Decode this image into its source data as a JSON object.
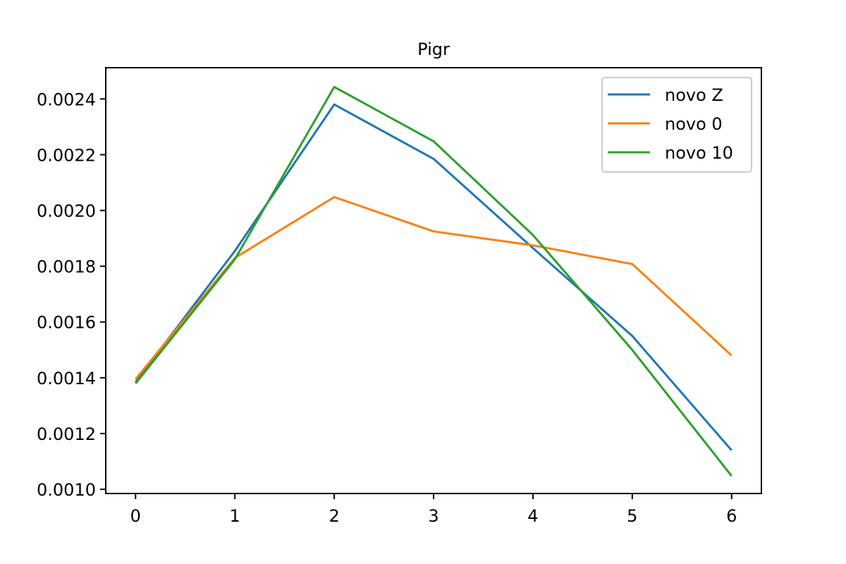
{
  "chart_data": {
    "type": "line",
    "title": "Pigr",
    "xlabel": "",
    "ylabel": "",
    "x": [
      0,
      1,
      2,
      3,
      4,
      5,
      6
    ],
    "xlim": [
      -0.3,
      6.3
    ],
    "ylim": [
      0.000985,
      0.002512
    ],
    "x_ticks": [
      0,
      1,
      2,
      3,
      4,
      5,
      6
    ],
    "x_tick_labels": [
      "0",
      "1",
      "2",
      "3",
      "4",
      "5",
      "6"
    ],
    "y_ticks": [
      0.001,
      0.0012,
      0.0014,
      0.0016,
      0.0018,
      0.002,
      0.0022,
      0.0024
    ],
    "y_tick_labels": [
      "0.0010",
      "0.0012",
      "0.0014",
      "0.0016",
      "0.0018",
      "0.0020",
      "0.0022",
      "0.0024"
    ],
    "grid": false,
    "legend_position": "top-right",
    "series": [
      {
        "name": "novo Z",
        "color": "#1f77b4",
        "values": [
          0.001385,
          0.001855,
          0.00238,
          0.002185,
          0.001865,
          0.00155,
          0.00114
        ]
      },
      {
        "name": "novo 0",
        "color": "#ff7f0e",
        "values": [
          0.001395,
          0.00183,
          0.002048,
          0.001925,
          0.001875,
          0.001808,
          0.00148
        ]
      },
      {
        "name": "novo 10",
        "color": "#2ca02c",
        "values": [
          0.00138,
          0.001825,
          0.002443,
          0.002248,
          0.001912,
          0.0015,
          0.001048
        ]
      }
    ]
  }
}
